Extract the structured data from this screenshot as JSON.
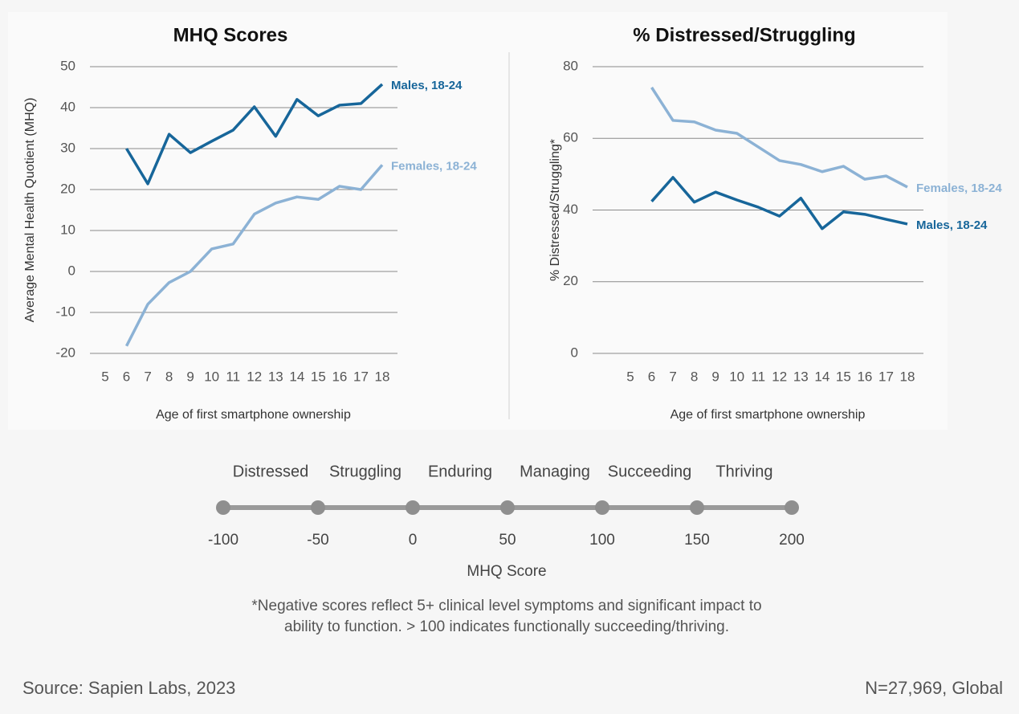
{
  "chart_data": [
    {
      "type": "line",
      "title": "MHQ Scores",
      "y_label": "Average Mental Health Quotient (MHQ)",
      "x_label": "Age of first smartphone ownership",
      "x": [
        6,
        7,
        8,
        9,
        10,
        11,
        12,
        13,
        14,
        15,
        16,
        17,
        18
      ],
      "series": [
        {
          "name": "Males, 18-24",
          "color": "#17669a",
          "values": [
            30,
            21.4,
            33.5,
            29,
            31.8,
            34.5,
            40.2,
            33,
            42,
            38,
            40.6,
            41,
            45.7
          ]
        },
        {
          "name": "Females, 18-24",
          "color": "#8cb2d5",
          "values": [
            -18.2,
            -8,
            -2.7,
            0,
            5.5,
            6.7,
            14,
            16.7,
            18.2,
            17.6,
            20.8,
            20,
            26
          ]
        }
      ],
      "xlim": [
        5,
        18
      ],
      "xticks": [
        5,
        6,
        7,
        8,
        9,
        10,
        11,
        12,
        13,
        14,
        15,
        16,
        17,
        18
      ],
      "ylim": [
        -20,
        50
      ],
      "yticks": [
        -20,
        -10,
        0,
        10,
        20,
        30,
        40,
        50
      ],
      "grid": true
    },
    {
      "type": "line",
      "title": "% Distressed/Struggling",
      "y_label": "% Distressed/Struggling*",
      "x_label": "Age of first smartphone ownership",
      "x": [
        6,
        7,
        8,
        9,
        10,
        11,
        12,
        13,
        14,
        15,
        16,
        17,
        18
      ],
      "series": [
        {
          "name": "Females, 18-24",
          "color": "#8cb2d5",
          "values": [
            74.2,
            65,
            64.6,
            62.3,
            61.4,
            57.6,
            53.8,
            52.7,
            50.7,
            52.2,
            48.6,
            49.5,
            46.4
          ]
        },
        {
          "name": "Males, 18-24",
          "color": "#17669a",
          "values": [
            42.4,
            49.1,
            42.2,
            45,
            42.8,
            40.8,
            38.3,
            43.3,
            34.8,
            39.5,
            38.8,
            37.4,
            36.1
          ]
        }
      ],
      "xlim": [
        5,
        18
      ],
      "xticks": [
        5,
        6,
        7,
        8,
        9,
        10,
        11,
        12,
        13,
        14,
        15,
        16,
        17,
        18
      ],
      "ylim": [
        0,
        80
      ],
      "yticks": [
        0,
        20,
        40,
        60,
        80
      ],
      "grid": true
    }
  ],
  "scale": {
    "categories": [
      "Distressed",
      "Struggling",
      "Enduring",
      "Managing",
      "Succeeding",
      "Thriving"
    ],
    "ticks": [
      -100,
      -50,
      0,
      50,
      100,
      150,
      200
    ],
    "label": "MHQ Score"
  },
  "footnote": [
    "*Negative scores reflect 5+ clinical level symptoms and significant impact to",
    "ability to function. > 100 indicates functionally succeeding/thriving."
  ],
  "source": "Source: Sapien Labs, 2023",
  "sample": "N=27,969, Global"
}
